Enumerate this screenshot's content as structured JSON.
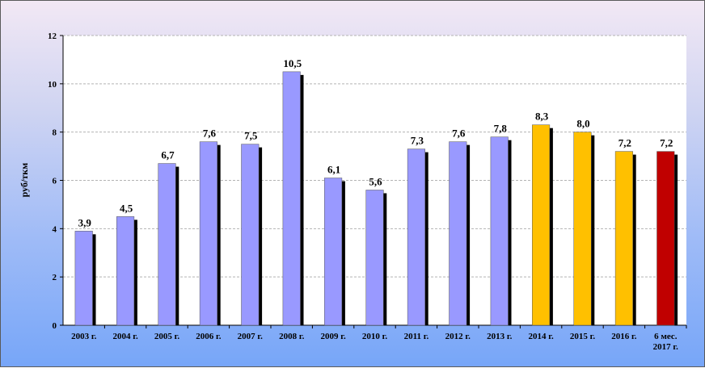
{
  "chart_data": {
    "type": "bar",
    "title": "",
    "xlabel": "",
    "ylabel": "руб/ткм",
    "ylim": [
      0,
      12
    ],
    "yticks": [
      "0",
      "2",
      "4",
      "6",
      "8",
      "10",
      "12"
    ],
    "grid": true,
    "categories": [
      [
        "2003 г."
      ],
      [
        "2004 г."
      ],
      [
        "2005 г."
      ],
      [
        "2006 г."
      ],
      [
        "2007 г."
      ],
      [
        "2008 г."
      ],
      [
        "2009 г."
      ],
      [
        "2010 г."
      ],
      [
        "2011 г."
      ],
      [
        "2012 г."
      ],
      [
        "2013 г."
      ],
      [
        "2014 г."
      ],
      [
        "2015 г."
      ],
      [
        "2016 г."
      ],
      [
        "6 мес.",
        "2017 г."
      ]
    ],
    "values": [
      3.9,
      4.5,
      6.7,
      7.6,
      7.5,
      10.5,
      6.1,
      5.6,
      7.3,
      7.6,
      7.8,
      8.3,
      8.0,
      7.2,
      7.2
    ],
    "value_labels": [
      "3,9",
      "4,5",
      "6,7",
      "7,6",
      "7,5",
      "10,5",
      "6,1",
      "5,6",
      "7,3",
      "7,6",
      "7,8",
      "8,3",
      "8,0",
      "7,2",
      "7,2"
    ],
    "bar_colors": [
      "#9999ff",
      "#9999ff",
      "#9999ff",
      "#9999ff",
      "#9999ff",
      "#9999ff",
      "#9999ff",
      "#9999ff",
      "#9999ff",
      "#9999ff",
      "#9999ff",
      "#ffc000",
      "#ffc000",
      "#ffc000",
      "#c00000"
    ],
    "shadow_color": "#000000",
    "plot_background": "#ffffff",
    "gridline_color": "#b3b3b3"
  }
}
